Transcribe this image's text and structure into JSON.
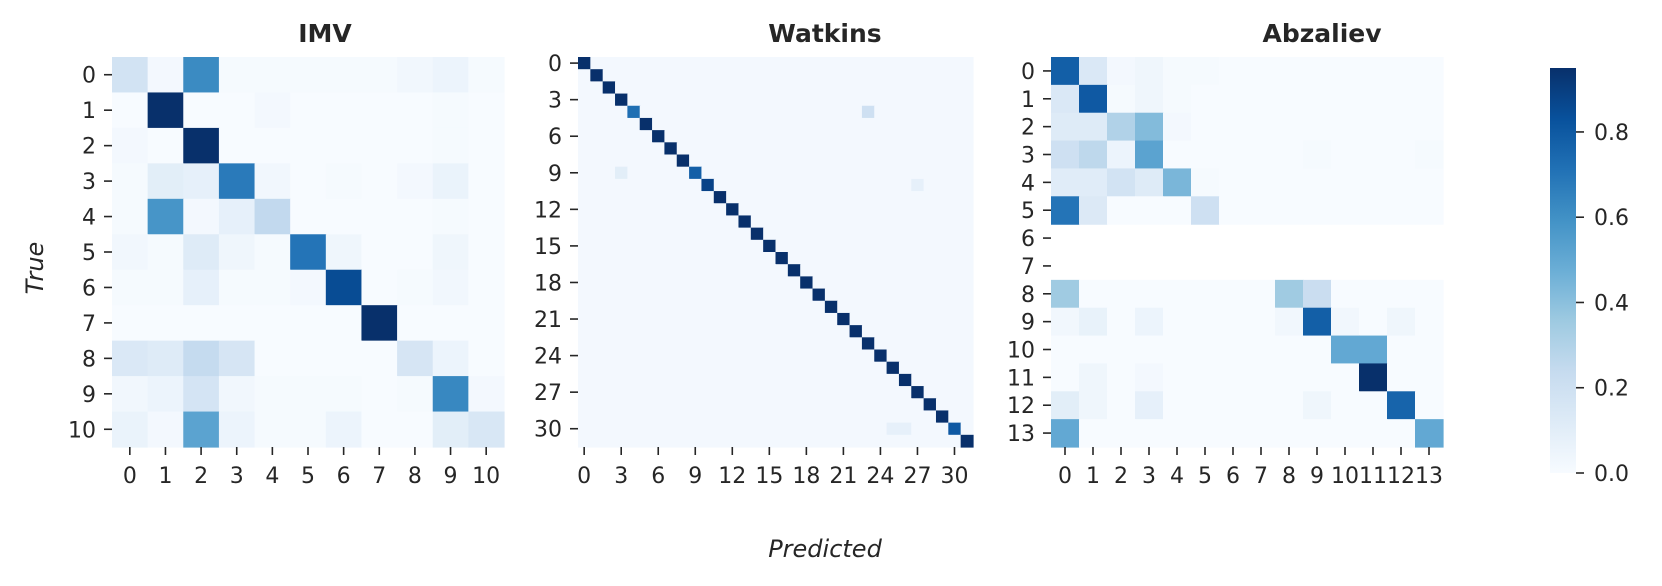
{
  "chart_data": [
    {
      "type": "heatmap",
      "title": "IMV",
      "ylabel": "True",
      "xlabel": "",
      "n": 11,
      "x_ticks": [
        "0",
        "1",
        "2",
        "3",
        "4",
        "5",
        "6",
        "7",
        "8",
        "9",
        "10"
      ],
      "y_ticks": [
        "0",
        "1",
        "2",
        "3",
        "4",
        "5",
        "6",
        "7",
        "8",
        "9",
        "10"
      ],
      "values": [
        [
          0.18,
          0.02,
          0.62,
          0.01,
          0.01,
          0.01,
          0.01,
          0.01,
          0.03,
          0.05,
          0.01
        ],
        [
          0.0,
          0.95,
          0.0,
          0.0,
          0.02,
          0.0,
          0.0,
          0.0,
          0.0,
          0.01,
          0.0
        ],
        [
          0.02,
          0.0,
          0.96,
          0.0,
          0.0,
          0.0,
          0.0,
          0.0,
          0.0,
          0.01,
          0.0
        ],
        [
          0.01,
          0.1,
          0.08,
          0.68,
          0.03,
          0.0,
          0.01,
          0.0,
          0.02,
          0.06,
          0.0
        ],
        [
          0.01,
          0.58,
          0.02,
          0.08,
          0.25,
          0.0,
          0.0,
          0.0,
          0.0,
          0.01,
          0.0
        ],
        [
          0.03,
          0.01,
          0.12,
          0.04,
          0.01,
          0.7,
          0.04,
          0.0,
          0.0,
          0.04,
          0.0
        ],
        [
          0.01,
          0.01,
          0.08,
          0.01,
          0.01,
          0.02,
          0.85,
          0.0,
          0.01,
          0.03,
          0.0
        ],
        [
          0.0,
          0.0,
          0.0,
          0.0,
          0.0,
          0.0,
          0.0,
          0.98,
          0.0,
          0.0,
          0.0
        ],
        [
          0.14,
          0.12,
          0.24,
          0.16,
          0.0,
          0.0,
          0.0,
          0.0,
          0.16,
          0.05,
          0.0
        ],
        [
          0.03,
          0.05,
          0.17,
          0.03,
          0.01,
          0.01,
          0.01,
          0.0,
          0.01,
          0.63,
          0.02
        ],
        [
          0.06,
          0.02,
          0.52,
          0.05,
          0.01,
          0.01,
          0.05,
          0.0,
          0.0,
          0.1,
          0.15
        ]
      ]
    },
    {
      "type": "heatmap",
      "title": "Watkins",
      "xlabel": "Predicted",
      "ylabel": "",
      "n": 32,
      "tick_step": 3,
      "x_ticks": [
        "0",
        "3",
        "6",
        "9",
        "12",
        "15",
        "18",
        "21",
        "24",
        "27",
        "30"
      ],
      "y_ticks": [
        "0",
        "3",
        "6",
        "9",
        "12",
        "15",
        "18",
        "21",
        "24",
        "27",
        "30"
      ],
      "diagonal_default": 0.95,
      "diagonal_overrides": [
        [
          4,
          0.72
        ],
        [
          9,
          0.78
        ],
        [
          10,
          0.88
        ],
        [
          30,
          0.8
        ]
      ],
      "off_diagonal": [
        [
          4,
          23,
          0.2
        ],
        [
          9,
          3,
          0.1
        ],
        [
          10,
          27,
          0.08
        ],
        [
          30,
          25,
          0.08
        ],
        [
          30,
          26,
          0.08
        ]
      ],
      "background": 0.02
    },
    {
      "type": "heatmap",
      "title": "Abzaliev",
      "xlabel": "",
      "ylabel": "",
      "n": 14,
      "x_ticks": [
        "0",
        "1",
        "2",
        "3",
        "4",
        "5",
        "6",
        "7",
        "8",
        "9",
        "10",
        "11",
        "12",
        "13"
      ],
      "y_ticks": [
        "0",
        "1",
        "2",
        "3",
        "4",
        "5",
        "6",
        "7",
        "8",
        "9",
        "10",
        "11",
        "12",
        "13"
      ],
      "empty_rows": [
        6,
        7
      ],
      "values": [
        [
          0.78,
          0.14,
          0.02,
          0.04,
          0.01,
          0.01,
          0.0,
          0.0,
          0.0,
          0.0,
          0.0,
          0.0,
          0.0,
          0.0
        ],
        [
          0.14,
          0.8,
          0.01,
          0.04,
          0.01,
          0.0,
          0.0,
          0.0,
          0.0,
          0.0,
          0.0,
          0.0,
          0.0,
          0.0
        ],
        [
          0.12,
          0.12,
          0.3,
          0.42,
          0.02,
          0.0,
          0.0,
          0.0,
          0.0,
          0.0,
          0.0,
          0.0,
          0.0,
          0.0
        ],
        [
          0.2,
          0.26,
          0.05,
          0.52,
          0.0,
          0.0,
          0.0,
          0.0,
          0.0,
          0.01,
          0.0,
          0.0,
          0.0,
          0.01
        ],
        [
          0.11,
          0.11,
          0.18,
          0.12,
          0.44,
          0.01,
          0.0,
          0.0,
          0.0,
          0.0,
          0.0,
          0.0,
          0.0,
          0.0
        ],
        [
          0.7,
          0.13,
          0.0,
          0.0,
          0.0,
          0.2,
          0.0,
          0.0,
          0.0,
          0.0,
          0.0,
          0.0,
          0.0,
          0.0
        ],
        [
          0,
          0,
          0,
          0,
          0,
          0,
          0,
          0,
          0,
          0,
          0,
          0,
          0,
          0
        ],
        [
          0,
          0,
          0,
          0,
          0,
          0,
          0,
          0,
          0,
          0,
          0,
          0,
          0,
          0
        ],
        [
          0.35,
          0.0,
          0.0,
          0.0,
          0.0,
          0.0,
          0.0,
          0.0,
          0.35,
          0.22,
          0.0,
          0.0,
          0.0,
          0.0
        ],
        [
          0.03,
          0.07,
          0.0,
          0.05,
          0.0,
          0.0,
          0.0,
          0.0,
          0.03,
          0.78,
          0.03,
          0.0,
          0.04,
          0.0
        ],
        [
          0.0,
          0.0,
          0.0,
          0.0,
          0.0,
          0.0,
          0.0,
          0.0,
          0.0,
          0.0,
          0.5,
          0.5,
          0.0,
          0.0
        ],
        [
          0.0,
          0.04,
          0.0,
          0.02,
          0.0,
          0.0,
          0.0,
          0.0,
          0.0,
          0.0,
          0.0,
          0.96,
          0.0,
          0.0
        ],
        [
          0.1,
          0.04,
          0.0,
          0.08,
          0.0,
          0.0,
          0.0,
          0.0,
          0.0,
          0.04,
          0.0,
          0.0,
          0.76,
          0.0
        ],
        [
          0.5,
          0.0,
          0.0,
          0.0,
          0.0,
          0.0,
          0.0,
          0.0,
          0.0,
          0.0,
          0.0,
          0.0,
          0.0,
          0.5
        ]
      ]
    }
  ],
  "colorbar": {
    "vmin": 0.0,
    "vmax": 0.95,
    "ticks": [
      "0.0",
      "0.2",
      "0.4",
      "0.6",
      "0.8"
    ],
    "tick_values": [
      0.0,
      0.2,
      0.4,
      0.6,
      0.8
    ],
    "colormap": "Blues",
    "colors": [
      "#f7fbff",
      "#deebf7",
      "#c6dbef",
      "#9ecae1",
      "#6baed6",
      "#4292c6",
      "#2171b5",
      "#08519c",
      "#08306b"
    ]
  }
}
